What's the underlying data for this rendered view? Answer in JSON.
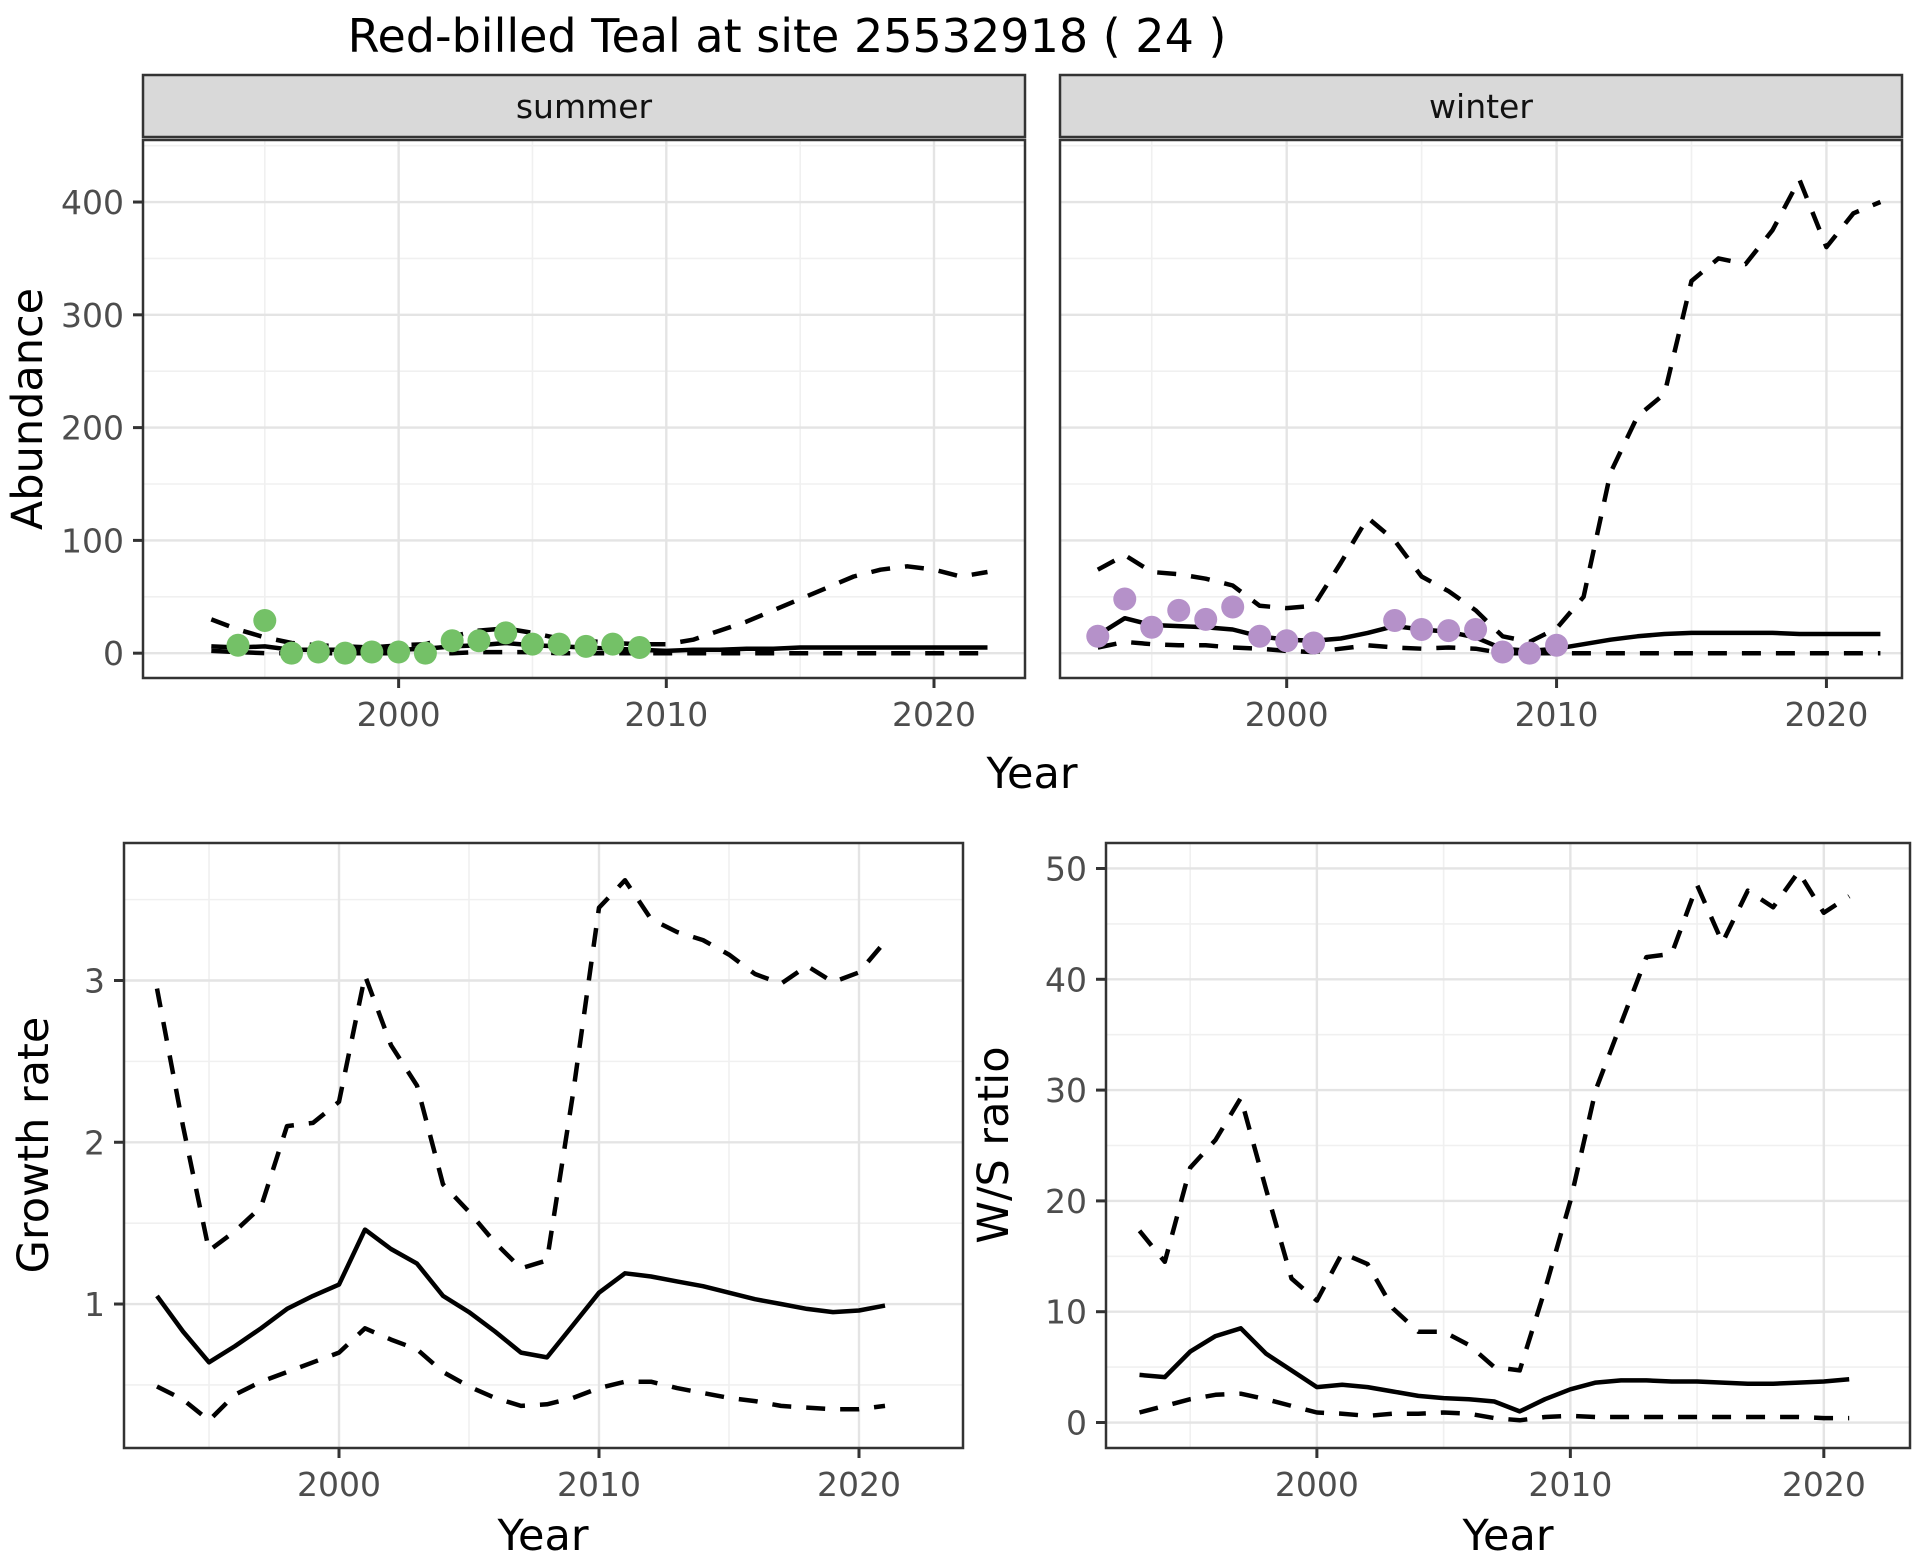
{
  "title": "Red-billed Teal at site 25532918 ( 24 )",
  "facets": {
    "summer": "summer",
    "winter": "winter"
  },
  "axes": {
    "abundance_ylabel": "Abundance",
    "top_xlabel": "Year",
    "growth_ylabel": "Growth rate",
    "growth_xlabel": "Year",
    "ws_ylabel": "W/S ratio",
    "ws_xlabel": "Year"
  },
  "colors": {
    "summer_point": "#74c167",
    "winter_point": "#b591c9",
    "line": "#000000",
    "grid_major": "#e4e4e4",
    "grid_minor": "#f0f0f0",
    "panel_border": "#333333",
    "strip_bg": "#d9d9d9",
    "axis_text": "#4d4d4d",
    "tick_mark": "#333333"
  },
  "chart_data": [
    {
      "id": "abundance-summer",
      "type": "line",
      "facet_label": "summer",
      "xlabel": "Year",
      "ylabel": "Abundance",
      "xlim": [
        1990.45,
        2023.4
      ],
      "ylim": [
        -22,
        455
      ],
      "xticks": [
        2000,
        2010,
        2020
      ],
      "xminor": [
        1995,
        2005,
        2015
      ],
      "yticks": [
        0,
        100,
        200,
        300,
        400
      ],
      "yminor": [
        50,
        150,
        250,
        350,
        450
      ],
      "series": [
        {
          "name": "lower-ci",
          "style": "dashed",
          "x_start": 1993,
          "values": [
            2,
            1,
            0,
            0,
            0,
            0,
            0,
            0,
            0,
            0,
            1,
            1,
            1,
            0,
            0,
            0,
            0,
            0,
            0,
            0,
            0,
            0,
            0,
            0,
            0,
            0,
            0,
            0,
            0,
            0
          ]
        },
        {
          "name": "upper-ci",
          "style": "dashed",
          "x_start": 1993,
          "values": [
            30,
            21,
            14,
            9,
            7,
            6,
            5,
            7,
            8,
            15,
            20,
            22,
            18,
            13,
            11,
            9,
            8,
            8,
            12,
            20,
            28,
            38,
            48,
            58,
            68,
            74,
            77,
            74,
            68,
            72
          ]
        },
        {
          "name": "median",
          "style": "solid",
          "x_start": 1993,
          "values": [
            6,
            5,
            6,
            3,
            3,
            3,
            3,
            3,
            4,
            6,
            7,
            9,
            7,
            6,
            5,
            4,
            3,
            2,
            3,
            3,
            4,
            4,
            5,
            5,
            5,
            5,
            5,
            5,
            5,
            5
          ]
        },
        {
          "name": "observed",
          "style": "points",
          "color_key": "summer_point",
          "x": [
            1994,
            1995,
            1996,
            1997,
            1998,
            1999,
            2000,
            2001,
            2002,
            2003,
            2004,
            2005,
            2006,
            2007,
            2008,
            2009
          ],
          "values": [
            7,
            29,
            0,
            1,
            0,
            1,
            1,
            0,
            11,
            11,
            18,
            8,
            8,
            6,
            8,
            5
          ]
        }
      ]
    },
    {
      "id": "abundance-winter",
      "type": "line",
      "facet_label": "winter",
      "xlabel": "Year",
      "ylabel": "Abundance",
      "xlim": [
        1991.6,
        2022.8
      ],
      "ylim": [
        -22,
        455
      ],
      "xticks": [
        2000,
        2010,
        2020
      ],
      "xminor": [
        1995,
        2005,
        2015
      ],
      "yticks": [
        0,
        100,
        200,
        300,
        400
      ],
      "yminor": [
        50,
        150,
        250,
        350,
        450
      ],
      "series": [
        {
          "name": "lower-ci",
          "style": "dashed",
          "x_start": 1993,
          "values": [
            5,
            10,
            8,
            7,
            7,
            5,
            4,
            2,
            1,
            4,
            7,
            5,
            4,
            5,
            4,
            0,
            0,
            0,
            0,
            0,
            0,
            0,
            0,
            0,
            0,
            0,
            0,
            0,
            0,
            0
          ]
        },
        {
          "name": "upper-ci",
          "style": "dashed",
          "x_start": 1993,
          "values": [
            74,
            87,
            72,
            70,
            66,
            60,
            42,
            40,
            42,
            80,
            120,
            100,
            68,
            55,
            38,
            15,
            10,
            22,
            50,
            160,
            210,
            230,
            330,
            350,
            345,
            375,
            420,
            360,
            390,
            400
          ]
        },
        {
          "name": "median",
          "style": "solid",
          "x_start": 1993,
          "values": [
            16,
            31,
            25,
            24,
            23,
            21,
            15,
            12,
            11,
            13,
            18,
            24,
            21,
            19,
            14,
            4,
            2,
            4,
            8,
            12,
            15,
            17,
            18,
            18,
            18,
            18,
            17,
            17,
            17,
            17
          ]
        },
        {
          "name": "observed",
          "style": "points",
          "color_key": "winter_point",
          "x": [
            1993,
            1994,
            1995,
            1996,
            1997,
            1998,
            1999,
            2000,
            2001,
            2004,
            2005,
            2006,
            2007,
            2008,
            2009,
            2010
          ],
          "values": [
            15,
            48,
            23,
            38,
            30,
            41,
            15,
            11,
            9,
            29,
            21,
            20,
            21,
            1,
            0,
            7
          ]
        }
      ]
    },
    {
      "id": "growth-rate",
      "type": "line",
      "xlabel": "Year",
      "ylabel": "Growth rate",
      "xlim": [
        1991.73,
        2024.0
      ],
      "ylim": [
        0.11,
        3.85
      ],
      "xticks": [
        2000,
        2010,
        2020
      ],
      "xminor": [
        1995,
        2005,
        2015
      ],
      "yticks": [
        1,
        2,
        3
      ],
      "yminor": [
        0.5,
        1.5,
        2.5,
        3.5
      ],
      "series": [
        {
          "name": "lower-ci",
          "style": "dashed",
          "x_start": 1993,
          "values": [
            0.49,
            0.41,
            0.28,
            0.44,
            0.52,
            0.58,
            0.64,
            0.7,
            0.85,
            0.78,
            0.72,
            0.58,
            0.49,
            0.42,
            0.37,
            0.38,
            0.42,
            0.48,
            0.52,
            0.52,
            0.48,
            0.45,
            0.42,
            0.4,
            0.37,
            0.36,
            0.35,
            0.35,
            0.37
          ]
        },
        {
          "name": "upper-ci",
          "style": "dashed",
          "x_start": 1993,
          "values": [
            2.95,
            2.1,
            1.33,
            1.45,
            1.6,
            2.1,
            2.12,
            2.25,
            3.03,
            2.6,
            2.35,
            1.74,
            1.57,
            1.38,
            1.22,
            1.27,
            2.3,
            3.45,
            3.62,
            3.38,
            3.3,
            3.25,
            3.16,
            3.04,
            2.98,
            3.09,
            2.99,
            3.05,
            3.24
          ]
        },
        {
          "name": "median",
          "style": "solid",
          "x_start": 1993,
          "values": [
            1.05,
            0.83,
            0.64,
            0.74,
            0.85,
            0.97,
            1.05,
            1.12,
            1.46,
            1.34,
            1.25,
            1.05,
            0.95,
            0.83,
            0.7,
            0.67,
            0.87,
            1.07,
            1.19,
            1.17,
            1.14,
            1.11,
            1.07,
            1.03,
            1.0,
            0.97,
            0.95,
            0.96,
            0.99
          ]
        }
      ]
    },
    {
      "id": "ws-ratio",
      "type": "line",
      "xlabel": "Year",
      "ylabel": "W/S ratio",
      "xlim": [
        1991.68,
        2023.4
      ],
      "ylim": [
        -2.3,
        52.3
      ],
      "xticks": [
        2000,
        2010,
        2020
      ],
      "xminor": [
        1995,
        2005,
        2015
      ],
      "yticks": [
        0,
        10,
        20,
        30,
        40,
        50
      ],
      "yminor": [
        5,
        15,
        25,
        35,
        45
      ],
      "series": [
        {
          "name": "lower-ci",
          "style": "dashed",
          "x_start": 1993,
          "values": [
            0.9,
            1.5,
            2.1,
            2.5,
            2.6,
            2.1,
            1.5,
            0.9,
            0.8,
            0.6,
            0.8,
            0.8,
            0.9,
            0.8,
            0.4,
            0.2,
            0.5,
            0.6,
            0.5,
            0.5,
            0.5,
            0.5,
            0.5,
            0.5,
            0.5,
            0.5,
            0.5,
            0.4,
            0.4
          ]
        },
        {
          "name": "upper-ci",
          "style": "dashed",
          "x_start": 1993,
          "values": [
            17.3,
            14.5,
            23.0,
            25.5,
            29.3,
            21.0,
            13.0,
            11.0,
            15.3,
            14.3,
            10.3,
            8.2,
            8.2,
            7.0,
            5.0,
            4.7,
            12.0,
            20.0,
            30.0,
            36.0,
            42.0,
            42.3,
            48.5,
            43.3,
            48.0,
            46.5,
            49.7,
            46.0,
            47.5
          ]
        },
        {
          "name": "median",
          "style": "solid",
          "x_start": 1993,
          "values": [
            4.3,
            4.1,
            6.4,
            7.8,
            8.5,
            6.2,
            4.7,
            3.2,
            3.4,
            3.2,
            2.8,
            2.4,
            2.2,
            2.1,
            1.9,
            1.0,
            2.1,
            3.0,
            3.6,
            3.8,
            3.8,
            3.7,
            3.7,
            3.6,
            3.5,
            3.5,
            3.6,
            3.7,
            3.9
          ]
        }
      ]
    }
  ]
}
